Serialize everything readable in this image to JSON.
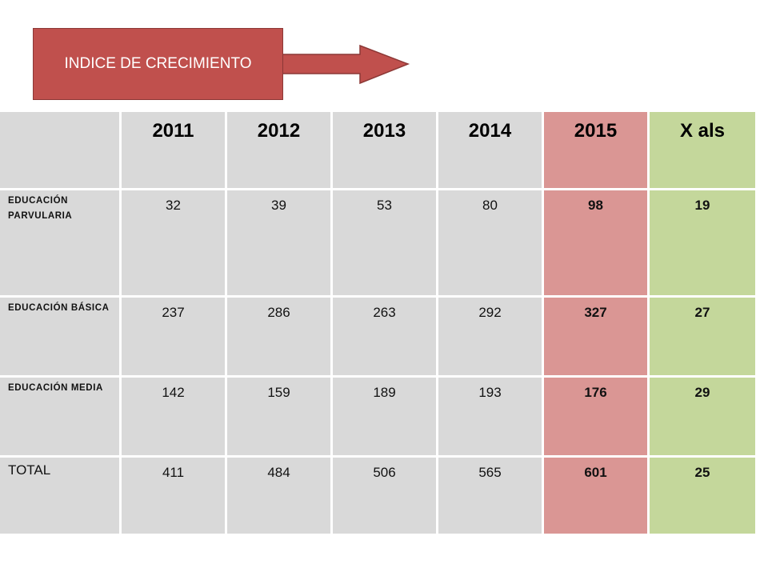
{
  "banner": {
    "title": "INDICE DE CRECIMIENTO"
  },
  "table": {
    "headers": [
      "",
      "2011",
      "2012",
      "2013",
      "2014",
      "2015",
      "X als"
    ],
    "rows": [
      {
        "label": "EDUCACIÓN PARVULARIA",
        "values": [
          "32",
          "39",
          "53",
          "80",
          "98",
          "19"
        ]
      },
      {
        "label": "EDUCACIÓN BÁSICA",
        "values": [
          "237",
          "286",
          "263",
          "292",
          "327",
          "27"
        ]
      },
      {
        "label": "EDUCACIÓN MEDIA",
        "values": [
          "142",
          "159",
          "189",
          "193",
          "176",
          "29"
        ]
      },
      {
        "label": "TOTAL",
        "values": [
          "411",
          "484",
          "506",
          "565",
          "601",
          "25"
        ]
      }
    ]
  },
  "colors": {
    "banner": "#c0504d",
    "cell": "#d9d9d9",
    "highlight_2015": "#da9694",
    "highlight_xals": "#c4d79b"
  }
}
